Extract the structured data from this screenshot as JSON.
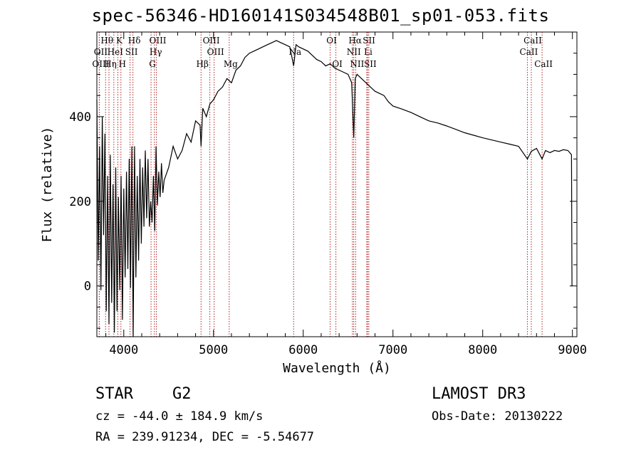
{
  "chart_data": {
    "type": "line",
    "title": "spec-56346-HD160141S034548B01_sp01-053.fits",
    "xlabel": "Wavelength (Å)",
    "ylabel": "Flux (relative)",
    "xlim": [
      3700,
      9050
    ],
    "ylim": [
      -120,
      600
    ],
    "x_ticks": [
      4000,
      5000,
      6000,
      7000,
      8000,
      9000
    ],
    "y_ticks": [
      0,
      200,
      400
    ],
    "grid": false,
    "series": [
      {
        "name": "flux",
        "x": [
          3700,
          3715,
          3730,
          3745,
          3760,
          3775,
          3790,
          3805,
          3820,
          3835,
          3850,
          3865,
          3880,
          3895,
          3910,
          3925,
          3940,
          3955,
          3970,
          3985,
          4000,
          4015,
          4030,
          4045,
          4060,
          4075,
          4090,
          4105,
          4120,
          4135,
          4150,
          4165,
          4180,
          4195,
          4210,
          4225,
          4240,
          4255,
          4270,
          4285,
          4300,
          4315,
          4330,
          4345,
          4360,
          4375,
          4390,
          4405,
          4420,
          4435,
          4450,
          4500,
          4550,
          4600,
          4650,
          4700,
          4750,
          4800,
          4850,
          4861,
          4880,
          4920,
          4960,
          5000,
          5050,
          5100,
          5150,
          5200,
          5250,
          5300,
          5350,
          5400,
          5450,
          5500,
          5550,
          5600,
          5650,
          5700,
          5750,
          5800,
          5850,
          5893,
          5920,
          5950,
          6000,
          6050,
          6100,
          6150,
          6200,
          6250,
          6300,
          6350,
          6400,
          6450,
          6500,
          6540,
          6563,
          6580,
          6600,
          6650,
          6700,
          6750,
          6800,
          6850,
          6900,
          6950,
          7000,
          7100,
          7200,
          7300,
          7400,
          7500,
          7600,
          7700,
          7800,
          7900,
          8000,
          8100,
          8200,
          8300,
          8400,
          8498,
          8542,
          8600,
          8662,
          8700,
          8750,
          8800,
          8850,
          8900,
          8950,
          8990,
          8995,
          9000
        ],
        "values": [
          440,
          60,
          330,
          -10,
          400,
          120,
          360,
          -60,
          260,
          -90,
          310,
          -40,
          240,
          -110,
          280,
          -60,
          210,
          -10,
          260,
          -80,
          230,
          20,
          270,
          40,
          300,
          -5,
          330,
          -120,
          330,
          20,
          260,
          60,
          300,
          100,
          280,
          140,
          320,
          160,
          300,
          140,
          200,
          150,
          260,
          130,
          330,
          190,
          270,
          210,
          290,
          220,
          250,
          280,
          330,
          300,
          320,
          360,
          340,
          390,
          380,
          330,
          420,
          400,
          430,
          440,
          460,
          470,
          490,
          480,
          510,
          520,
          540,
          550,
          555,
          560,
          565,
          570,
          575,
          580,
          575,
          570,
          565,
          520,
          570,
          565,
          560,
          555,
          545,
          535,
          530,
          520,
          525,
          515,
          510,
          505,
          500,
          480,
          350,
          490,
          500,
          490,
          480,
          470,
          460,
          455,
          450,
          435,
          425,
          418,
          410,
          400,
          390,
          385,
          378,
          370,
          362,
          356,
          350,
          345,
          340,
          335,
          330,
          300,
          318,
          325,
          300,
          320,
          315,
          320,
          318,
          322,
          320,
          310,
          0,
          0
        ]
      }
    ],
    "spectral_lines": [
      {
        "label": "Hθ",
        "x": 3797,
        "row": 1
      },
      {
        "label": "OII",
        "x": 3727,
        "row": 2
      },
      {
        "label": "OIII",
        "x": 3727,
        "row": 3
      },
      {
        "label": "HeI",
        "x": 3889,
        "row": 2
      },
      {
        "label": "Hη",
        "x": 3835,
        "row": 3
      },
      {
        "label": "K",
        "x": 3934,
        "row": 1
      },
      {
        "label": "SII",
        "x": 4070,
        "row": 2
      },
      {
        "label": "H",
        "x": 3968,
        "row": 3
      },
      {
        "label": "Hδ",
        "x": 4102,
        "row": 1
      },
      {
        "label": "OIII",
        "x": 4363,
        "row": 1
      },
      {
        "label": "Hγ",
        "x": 4341,
        "row": 2
      },
      {
        "label": "G",
        "x": 4304,
        "row": 3
      },
      {
        "label": "Hβ",
        "x": 4861,
        "row": 3
      },
      {
        "label": "OIII",
        "x": 4959,
        "row": 1
      },
      {
        "label": "OIII",
        "x": 5007,
        "row": 2
      },
      {
        "label": "Mg",
        "x": 5175,
        "row": 3
      },
      {
        "label": "Na",
        "x": 5893,
        "row": 2
      },
      {
        "label": "OI",
        "x": 6300,
        "row": 1
      },
      {
        "label": "OI",
        "x": 6364,
        "row": 3
      },
      {
        "label": "Hα",
        "x": 6563,
        "row": 1
      },
      {
        "label": "NII",
        "x": 6548,
        "row": 2
      },
      {
        "label": "NII",
        "x": 6584,
        "row": 3
      },
      {
        "label": "SII",
        "x": 6717,
        "row": 1
      },
      {
        "label": "Li",
        "x": 6708,
        "row": 2
      },
      {
        "label": "SII",
        "x": 6731,
        "row": 3
      },
      {
        "label": "CaII",
        "x": 8542,
        "row": 1
      },
      {
        "label": "CaII",
        "x": 8498,
        "row": 2
      },
      {
        "label": "CaII",
        "x": 8662,
        "row": 3
      }
    ]
  },
  "info": {
    "object_class": "STAR",
    "subclass": "G2",
    "survey": "LAMOST DR3",
    "cz": "cz = -44.0 ± 184.9 km/s",
    "obs_date": "Obs-Date: 20130222",
    "coords": "RA = 239.91234, DEC =  -5.54677"
  },
  "colors": {
    "line": "#000000",
    "spectral_line": "#b22222"
  }
}
